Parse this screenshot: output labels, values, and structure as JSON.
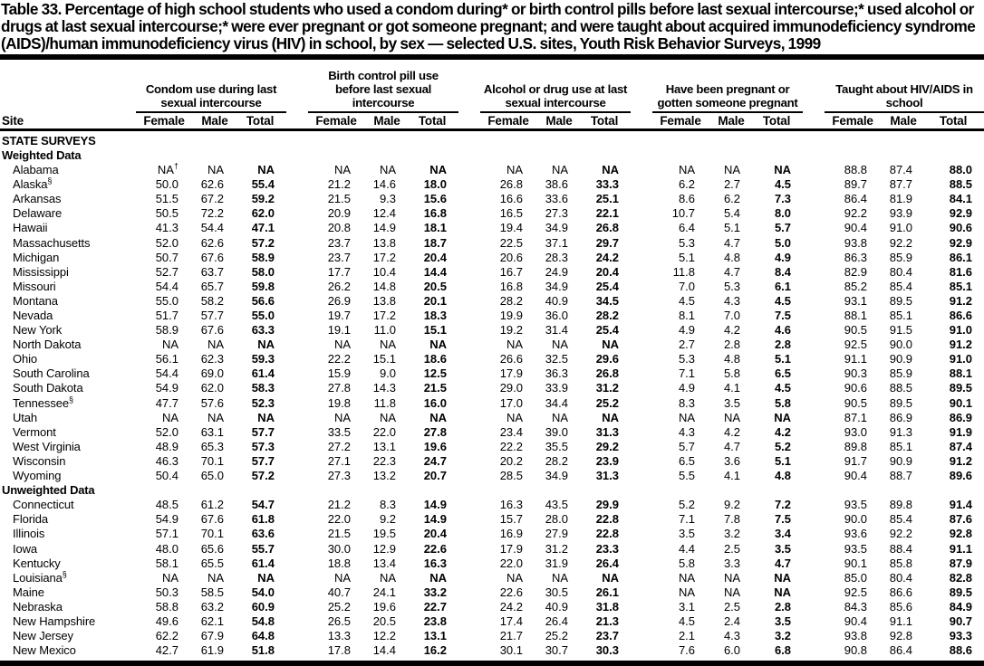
{
  "title": "Table 33. Percentage of high school students who used a condom during* or birth control pills before last sexual intercourse;* used alcohol or drugs at last sexual intercourse;* were ever pregnant or got someone pregnant; and were taught about acquired immunodeficiency syndrome (AIDS)/human immunodeficiency virus (HIV) in school, by sex — selected U.S. sites, Youth Risk Behavior Surveys, 1999",
  "colors": {
    "text": "#000000",
    "background": "#ffffff",
    "rule": "#000000"
  },
  "table": {
    "site_header": "Site",
    "group_headers": [
      "Condom use during last sexual intercourse",
      "Birth control pill use before last sexual intercourse",
      "Alcohol or drug use at last sexual intercourse",
      "Have been pregnant or gotten someone pregnant",
      "Taught about HIV/AIDS in school"
    ],
    "sub_headers": [
      "Female",
      "Male",
      "Total"
    ],
    "rows": [
      {
        "type": "section",
        "label": "STATE SURVEYS",
        "cells": []
      },
      {
        "type": "subsection",
        "label": "Weighted Data",
        "cells": []
      },
      {
        "type": "data",
        "label": "Alabama",
        "cells": [
          "NA†",
          "NA",
          "NA",
          "NA",
          "NA",
          "NA",
          "NA",
          "NA",
          "NA",
          "NA",
          "NA",
          "NA",
          "88.8",
          "87.4",
          "88.0"
        ]
      },
      {
        "type": "data",
        "label": "Alaska§",
        "cells": [
          "50.0",
          "62.6",
          "55.4",
          "21.2",
          "14.6",
          "18.0",
          "26.8",
          "38.6",
          "33.3",
          "6.2",
          "2.7",
          "4.5",
          "89.7",
          "87.7",
          "88.5"
        ]
      },
      {
        "type": "data",
        "label": "Arkansas",
        "cells": [
          "51.5",
          "67.2",
          "59.2",
          "21.5",
          "9.3",
          "15.6",
          "16.6",
          "33.6",
          "25.1",
          "8.6",
          "6.2",
          "7.3",
          "86.4",
          "81.9",
          "84.1"
        ]
      },
      {
        "type": "data",
        "label": "Delaware",
        "cells": [
          "50.5",
          "72.2",
          "62.0",
          "20.9",
          "12.4",
          "16.8",
          "16.5",
          "27.3",
          "22.1",
          "10.7",
          "5.4",
          "8.0",
          "92.2",
          "93.9",
          "92.9"
        ]
      },
      {
        "type": "data",
        "label": "Hawaii",
        "cells": [
          "41.3",
          "54.4",
          "47.1",
          "20.8",
          "14.9",
          "18.1",
          "19.4",
          "34.9",
          "26.8",
          "6.4",
          "5.1",
          "5.7",
          "90.4",
          "91.0",
          "90.6"
        ]
      },
      {
        "type": "data",
        "label": "Massachusetts",
        "cells": [
          "52.0",
          "62.6",
          "57.2",
          "23.7",
          "13.8",
          "18.7",
          "22.5",
          "37.1",
          "29.7",
          "5.3",
          "4.7",
          "5.0",
          "93.8",
          "92.2",
          "92.9"
        ]
      },
      {
        "type": "data",
        "label": "Michigan",
        "cells": [
          "50.7",
          "67.6",
          "58.9",
          "23.7",
          "17.2",
          "20.4",
          "20.6",
          "28.3",
          "24.2",
          "5.1",
          "4.8",
          "4.9",
          "86.3",
          "85.9",
          "86.1"
        ]
      },
      {
        "type": "data",
        "label": "Mississippi",
        "cells": [
          "52.7",
          "63.7",
          "58.0",
          "17.7",
          "10.4",
          "14.4",
          "16.7",
          "24.9",
          "20.4",
          "11.8",
          "4.7",
          "8.4",
          "82.9",
          "80.4",
          "81.6"
        ]
      },
      {
        "type": "data",
        "label": "Missouri",
        "cells": [
          "54.4",
          "65.7",
          "59.8",
          "26.2",
          "14.8",
          "20.5",
          "16.8",
          "34.9",
          "25.4",
          "7.0",
          "5.3",
          "6.1",
          "85.2",
          "85.4",
          "85.1"
        ]
      },
      {
        "type": "data",
        "label": "Montana",
        "cells": [
          "55.0",
          "58.2",
          "56.6",
          "26.9",
          "13.8",
          "20.1",
          "28.2",
          "40.9",
          "34.5",
          "4.5",
          "4.3",
          "4.5",
          "93.1",
          "89.5",
          "91.2"
        ]
      },
      {
        "type": "data",
        "label": "Nevada",
        "cells": [
          "51.7",
          "57.7",
          "55.0",
          "19.7",
          "17.2",
          "18.3",
          "19.9",
          "36.0",
          "28.2",
          "8.1",
          "7.0",
          "7.5",
          "88.1",
          "85.1",
          "86.6"
        ]
      },
      {
        "type": "data",
        "label": "New York",
        "cells": [
          "58.9",
          "67.6",
          "63.3",
          "19.1",
          "11.0",
          "15.1",
          "19.2",
          "31.4",
          "25.4",
          "4.9",
          "4.2",
          "4.6",
          "90.5",
          "91.5",
          "91.0"
        ]
      },
      {
        "type": "data",
        "label": "North Dakota",
        "cells": [
          "NA",
          "NA",
          "NA",
          "NA",
          "NA",
          "NA",
          "NA",
          "NA",
          "NA",
          "2.7",
          "2.8",
          "2.8",
          "92.5",
          "90.0",
          "91.2"
        ]
      },
      {
        "type": "data",
        "label": "Ohio",
        "cells": [
          "56.1",
          "62.3",
          "59.3",
          "22.2",
          "15.1",
          "18.6",
          "26.6",
          "32.5",
          "29.6",
          "5.3",
          "4.8",
          "5.1",
          "91.1",
          "90.9",
          "91.0"
        ]
      },
      {
        "type": "data",
        "label": "South Carolina",
        "cells": [
          "54.4",
          "69.0",
          "61.4",
          "15.9",
          "9.0",
          "12.5",
          "17.9",
          "36.3",
          "26.8",
          "7.1",
          "5.8",
          "6.5",
          "90.3",
          "85.9",
          "88.1"
        ]
      },
      {
        "type": "data",
        "label": "South Dakota",
        "cells": [
          "54.9",
          "62.0",
          "58.3",
          "27.8",
          "14.3",
          "21.5",
          "29.0",
          "33.9",
          "31.2",
          "4.9",
          "4.1",
          "4.5",
          "90.6",
          "88.5",
          "89.5"
        ]
      },
      {
        "type": "data",
        "label": "Tennessee§",
        "cells": [
          "47.7",
          "57.6",
          "52.3",
          "19.8",
          "11.8",
          "16.0",
          "17.0",
          "34.4",
          "25.2",
          "8.3",
          "3.5",
          "5.8",
          "90.5",
          "89.5",
          "90.1"
        ]
      },
      {
        "type": "data",
        "label": "Utah",
        "cells": [
          "NA",
          "NA",
          "NA",
          "NA",
          "NA",
          "NA",
          "NA",
          "NA",
          "NA",
          "NA",
          "NA",
          "NA",
          "87.1",
          "86.9",
          "86.9"
        ]
      },
      {
        "type": "data",
        "label": "Vermont",
        "cells": [
          "52.0",
          "63.1",
          "57.7",
          "33.5",
          "22.0",
          "27.8",
          "23.4",
          "39.0",
          "31.3",
          "4.3",
          "4.2",
          "4.2",
          "93.0",
          "91.3",
          "91.9"
        ]
      },
      {
        "type": "data",
        "label": "West Virginia",
        "cells": [
          "48.9",
          "65.3",
          "57.3",
          "27.2",
          "13.1",
          "19.6",
          "22.2",
          "35.5",
          "29.2",
          "5.7",
          "4.7",
          "5.2",
          "89.8",
          "85.1",
          "87.4"
        ]
      },
      {
        "type": "data",
        "label": "Wisconsin",
        "cells": [
          "46.3",
          "70.1",
          "57.7",
          "27.1",
          "22.3",
          "24.7",
          "20.2",
          "28.2",
          "23.9",
          "6.5",
          "3.6",
          "5.1",
          "91.7",
          "90.9",
          "91.2"
        ]
      },
      {
        "type": "data",
        "label": "Wyoming",
        "cells": [
          "50.4",
          "65.0",
          "57.2",
          "27.3",
          "13.2",
          "20.7",
          "28.5",
          "34.9",
          "31.3",
          "5.5",
          "4.1",
          "4.8",
          "90.4",
          "88.7",
          "89.6"
        ]
      },
      {
        "type": "subsection",
        "label": "Unweighted Data",
        "cells": []
      },
      {
        "type": "data",
        "label": "Connecticut",
        "cells": [
          "48.5",
          "61.2",
          "54.7",
          "21.2",
          "8.3",
          "14.9",
          "16.3",
          "43.5",
          "29.9",
          "5.2",
          "9.2",
          "7.2",
          "93.5",
          "89.8",
          "91.4"
        ]
      },
      {
        "type": "data",
        "label": "Florida",
        "cells": [
          "54.9",
          "67.6",
          "61.8",
          "22.0",
          "9.2",
          "14.9",
          "15.7",
          "28.0",
          "22.8",
          "7.1",
          "7.8",
          "7.5",
          "90.0",
          "85.4",
          "87.6"
        ]
      },
      {
        "type": "data",
        "label": "Illinois",
        "cells": [
          "57.1",
          "70.1",
          "63.6",
          "21.5",
          "19.5",
          "20.4",
          "16.9",
          "27.9",
          "22.8",
          "3.5",
          "3.2",
          "3.4",
          "93.6",
          "92.2",
          "92.8"
        ]
      },
      {
        "type": "data",
        "label": "Iowa",
        "cells": [
          "48.0",
          "65.6",
          "55.7",
          "30.0",
          "12.9",
          "22.6",
          "17.9",
          "31.2",
          "23.3",
          "4.4",
          "2.5",
          "3.5",
          "93.5",
          "88.4",
          "91.1"
        ]
      },
      {
        "type": "data",
        "label": "Kentucky",
        "cells": [
          "58.1",
          "65.5",
          "61.4",
          "18.8",
          "13.4",
          "16.3",
          "22.0",
          "31.9",
          "26.4",
          "5.8",
          "3.3",
          "4.7",
          "90.1",
          "85.8",
          "87.9"
        ]
      },
      {
        "type": "data",
        "label": "Louisiana§",
        "cells": [
          "NA",
          "NA",
          "NA",
          "NA",
          "NA",
          "NA",
          "NA",
          "NA",
          "NA",
          "NA",
          "NA",
          "NA",
          "85.0",
          "80.4",
          "82.8"
        ]
      },
      {
        "type": "data",
        "label": "Maine",
        "cells": [
          "50.3",
          "58.5",
          "54.0",
          "40.7",
          "24.1",
          "33.2",
          "22.6",
          "30.5",
          "26.1",
          "NA",
          "NA",
          "NA",
          "92.5",
          "86.6",
          "89.5"
        ]
      },
      {
        "type": "data",
        "label": "Nebraska",
        "cells": [
          "58.8",
          "63.2",
          "60.9",
          "25.2",
          "19.6",
          "22.7",
          "24.2",
          "40.9",
          "31.8",
          "3.1",
          "2.5",
          "2.8",
          "84.3",
          "85.6",
          "84.9"
        ]
      },
      {
        "type": "data",
        "label": "New Hampshire",
        "cells": [
          "49.6",
          "62.1",
          "54.8",
          "26.5",
          "20.5",
          "23.8",
          "17.4",
          "26.4",
          "21.3",
          "4.5",
          "2.4",
          "3.5",
          "90.4",
          "91.1",
          "90.7"
        ]
      },
      {
        "type": "data",
        "label": "New Jersey",
        "cells": [
          "62.2",
          "67.9",
          "64.8",
          "13.3",
          "12.2",
          "13.1",
          "21.7",
          "25.2",
          "23.7",
          "2.1",
          "4.3",
          "3.2",
          "93.8",
          "92.8",
          "93.3"
        ]
      },
      {
        "type": "data",
        "label": "New Mexico",
        "cells": [
          "42.7",
          "61.9",
          "51.8",
          "17.8",
          "14.4",
          "16.2",
          "30.1",
          "30.7",
          "30.3",
          "7.6",
          "6.0",
          "6.8",
          "90.8",
          "86.4",
          "88.6"
        ]
      }
    ]
  }
}
